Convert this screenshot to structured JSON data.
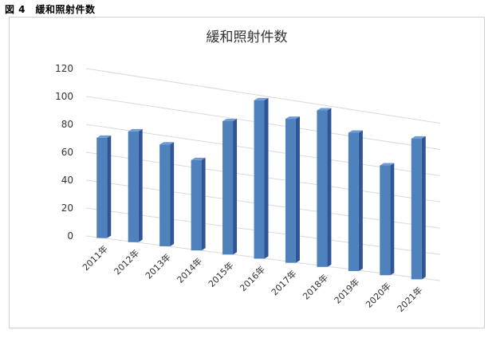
{
  "figure_caption": "図 4　緩和照射件数",
  "chart_data": {
    "type": "bar",
    "title": "緩和照射件数",
    "xlabel": "",
    "ylabel": "",
    "categories": [
      "2011年",
      "2012年",
      "2013年",
      "2014年",
      "2015年",
      "2016年",
      "2017年",
      "2018年",
      "2019年",
      "2020年",
      "2021年"
    ],
    "values": [
      72,
      80,
      74,
      66,
      98,
      117,
      107,
      117,
      104,
      83,
      107
    ],
    "ylim": [
      0,
      120
    ],
    "yticks": [
      "0",
      "20",
      "40",
      "60",
      "80",
      "100",
      "120"
    ],
    "grid": true,
    "bar_color": "#4f81bd",
    "style": "3d-perspective"
  }
}
